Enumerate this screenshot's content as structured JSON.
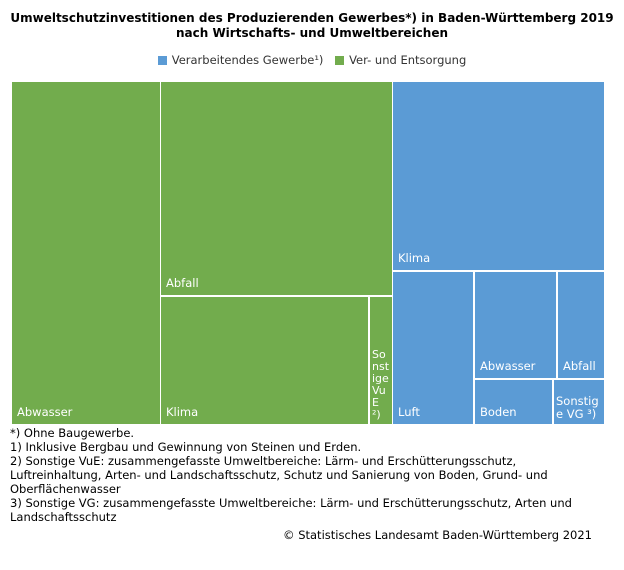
{
  "chart_data": {
    "type": "treemap",
    "title": "Umweltschutzinvestitionen des Produzierenden Gewerbes*) in Baden-Württemberg 2019",
    "subtitle": "nach Wirtschafts- und Umweltbereichen",
    "legend": [
      {
        "name": "Verarbeitendes Gewerbe¹)",
        "color": "#5b9bd5"
      },
      {
        "name": "Ver- und Entsorgung",
        "color": "#72ac4d"
      }
    ],
    "legend_position": "top",
    "series": [
      {
        "name": "Ver- und Entsorgung",
        "color": "#72ac4d",
        "items": [
          {
            "label": "Abwasser",
            "value": 50.6
          },
          {
            "label": "Abfall",
            "value": 49.2
          },
          {
            "label": "Klima",
            "value": 26.5
          },
          {
            "label": "Sonstige VuE ²)",
            "value": 2.9
          }
        ]
      },
      {
        "name": "Verarbeitendes Gewerbe¹)",
        "color": "#5b9bd5",
        "items": [
          {
            "label": "Klima",
            "value": 39.7
          },
          {
            "label": "Luft",
            "value": 12.2
          },
          {
            "label": "Abwasser",
            "value": 8.6
          },
          {
            "label": "Abfall",
            "value": 4.9
          },
          {
            "label": "Boden",
            "value": 3.4
          },
          {
            "label": "Sonstige VG ³)",
            "value": 2.2
          }
        ]
      }
    ]
  },
  "footnotes": [
    "*) Ohne Baugewerbe.",
    "1) Inklusive Bergbau und Gewinnung von Steinen und Erden.",
    "2) Sonstige VuE: zusammengefasste Umweltbereiche: Lärm- und Erschütterungsschutz, Luftreinhaltung, Arten- und Landschaftsschutz, Schutz und Sanierung von Boden, Grund- und Oberflächenwasser",
    "3) Sonstige VG: zusammengefasste Umweltbereiche: Lärm- und Erschütterungsschutz, Arten und Landschaftsschutz"
  ],
  "copyright": "© Statistisches Landesamt Baden-Württemberg 2021"
}
